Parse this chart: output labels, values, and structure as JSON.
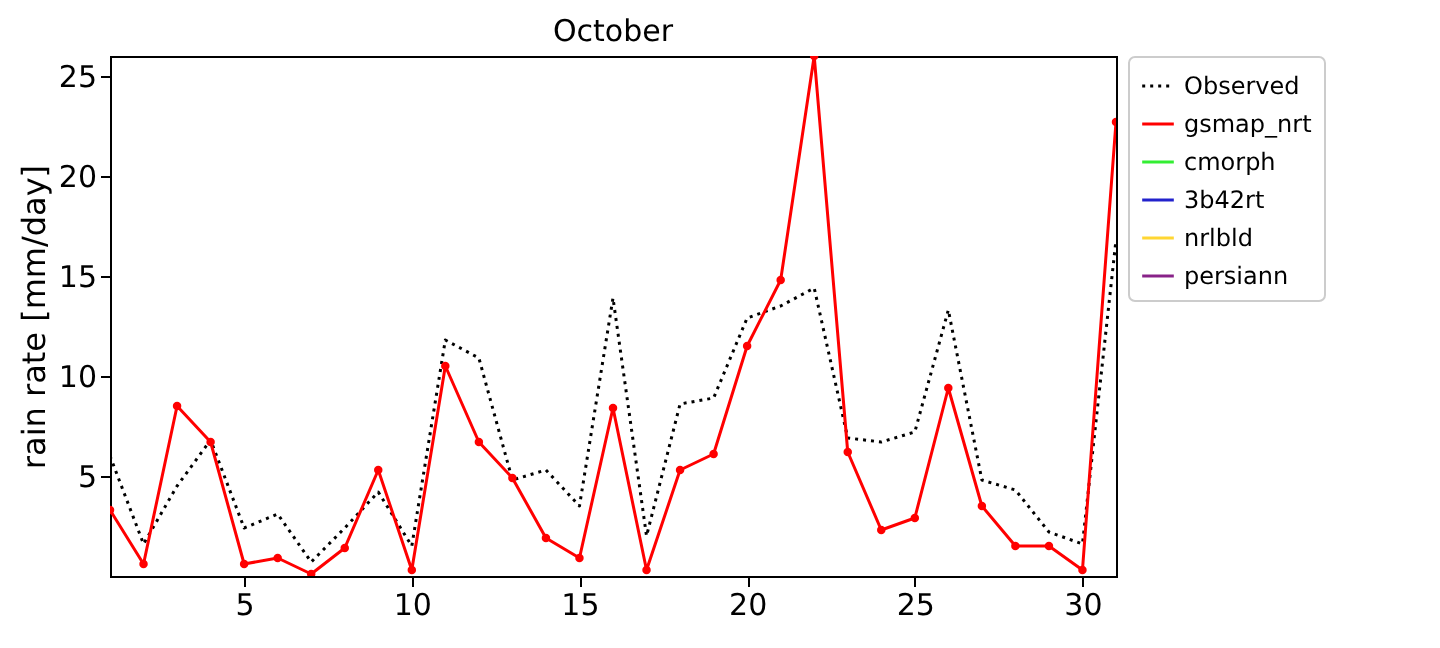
{
  "chart_data": {
    "type": "line",
    "title": "October",
    "ylabel": "rain rate [mm/day]",
    "x": [
      1,
      2,
      3,
      4,
      5,
      6,
      7,
      8,
      9,
      10,
      11,
      12,
      13,
      14,
      15,
      16,
      17,
      18,
      19,
      20,
      21,
      22,
      23,
      24,
      25,
      26,
      27,
      28,
      29,
      30,
      31
    ],
    "xlim": [
      1,
      31
    ],
    "xticks": [
      5,
      10,
      15,
      20,
      25,
      30
    ],
    "ylim": [
      0,
      26
    ],
    "yticks": [
      5,
      10,
      15,
      20,
      25
    ],
    "grid": false,
    "legend": "right",
    "series": [
      {
        "name": "Observed",
        "color": "#000000",
        "line_style": "dotted",
        "marker": "none",
        "values": [
          6.0,
          1.6,
          4.5,
          6.8,
          2.4,
          3.1,
          0.7,
          2.4,
          4.2,
          1.5,
          11.8,
          10.9,
          4.8,
          5.3,
          3.5,
          13.9,
          2.0,
          8.6,
          8.9,
          12.9,
          13.5,
          14.4,
          6.9,
          6.7,
          7.2,
          13.3,
          4.8,
          4.3,
          2.2,
          1.6,
          16.8
        ]
      },
      {
        "name": "gsmap_nrt",
        "color": "#ff0000",
        "line_style": "solid",
        "marker": "circle",
        "values": [
          3.3,
          0.6,
          8.5,
          6.7,
          0.6,
          0.9,
          0.1,
          1.4,
          5.3,
          0.3,
          10.5,
          6.7,
          4.9,
          1.9,
          0.9,
          8.4,
          0.3,
          5.3,
          6.1,
          11.5,
          14.8,
          26.0,
          6.2,
          2.3,
          2.9,
          9.4,
          3.5,
          1.5,
          1.5,
          0.3,
          22.7
        ]
      },
      {
        "name": "cmorph",
        "color": "#33ee33",
        "line_style": "solid",
        "marker": "none",
        "values": [
          null,
          null,
          null,
          null,
          null,
          null,
          null,
          null,
          null,
          null,
          null,
          null,
          null,
          null,
          null,
          null,
          null,
          null,
          null,
          null,
          null,
          null,
          null,
          null,
          null,
          null,
          null,
          null,
          null,
          null,
          null
        ]
      },
      {
        "name": "3b42rt",
        "color": "#2222cc",
        "line_style": "solid",
        "marker": "none",
        "values": [
          null,
          null,
          null,
          null,
          null,
          null,
          null,
          null,
          null,
          null,
          null,
          null,
          null,
          null,
          null,
          null,
          null,
          null,
          null,
          null,
          null,
          null,
          null,
          null,
          null,
          null,
          null,
          null,
          null,
          null,
          null
        ]
      },
      {
        "name": "nrlbld",
        "color": "#ffd633",
        "line_style": "solid",
        "marker": "none",
        "values": [
          null,
          null,
          null,
          null,
          null,
          null,
          null,
          null,
          null,
          null,
          null,
          null,
          null,
          null,
          null,
          null,
          null,
          null,
          null,
          null,
          null,
          null,
          null,
          null,
          null,
          null,
          null,
          null,
          null,
          null,
          null
        ]
      },
      {
        "name": "persiann",
        "color": "#882288",
        "line_style": "solid",
        "marker": "none",
        "values": [
          null,
          null,
          null,
          null,
          null,
          null,
          null,
          null,
          null,
          null,
          null,
          null,
          null,
          null,
          null,
          null,
          null,
          null,
          null,
          null,
          null,
          null,
          null,
          null,
          null,
          null,
          null,
          null,
          null,
          null,
          null
        ]
      }
    ]
  }
}
